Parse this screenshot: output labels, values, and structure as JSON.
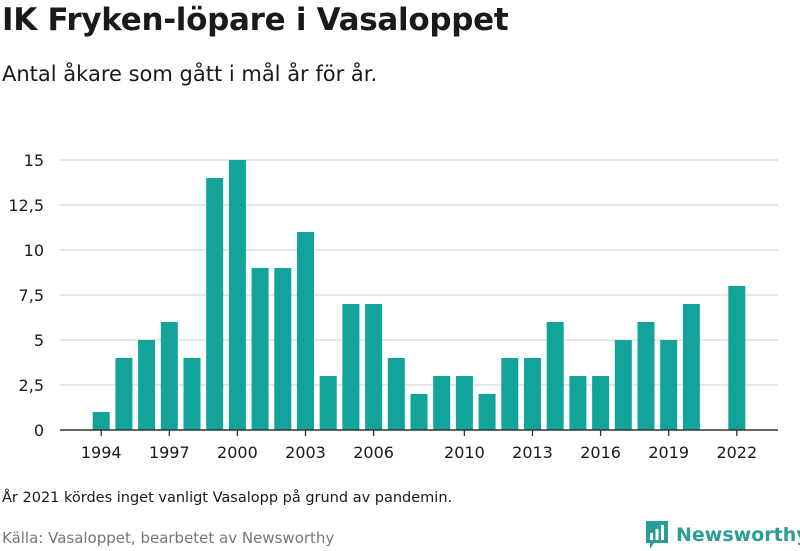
{
  "header": {
    "title": "IK Fryken-löpare i Vasaloppet",
    "subtitle": "Antal åkare som gått i mål år för år."
  },
  "footer": {
    "note": "År 2021 kördes inget vanligt Vasalopp på grund av pandemin.",
    "source": "Källa: Vasaloppet, bearbetet av Newsworthy",
    "brand": "Newsworthy"
  },
  "colors": {
    "bar": "#12a39b",
    "grid": "#d6d6d6",
    "axis": "#333333",
    "brand": "#2a9d94"
  },
  "chart_data": {
    "type": "bar",
    "title": "IK Fryken-löpare i Vasaloppet",
    "subtitle": "Antal åkare som gått i mål år för år.",
    "xlabel": "",
    "ylabel": "",
    "categories": [
      1993,
      1994,
      1995,
      1996,
      1997,
      1998,
      1999,
      2000,
      2001,
      2002,
      2003,
      2004,
      2005,
      2006,
      2007,
      2008,
      2009,
      2010,
      2011,
      2012,
      2013,
      2014,
      2015,
      2016,
      2017,
      2018,
      2019,
      2020,
      2021,
      2022
    ],
    "values": [
      null,
      1,
      4,
      5,
      6,
      4,
      14,
      15,
      9,
      9,
      11,
      3,
      7,
      7,
      4,
      2,
      3,
      3,
      2,
      4,
      4,
      6,
      3,
      3,
      5,
      6,
      5,
      7,
      null,
      8
    ],
    "x_tick_labels": [
      "1994",
      "1997",
      "2000",
      "2003",
      "2006",
      "2010",
      "2013",
      "2016",
      "2019",
      "2022"
    ],
    "y_ticks": [
      0,
      2.5,
      5,
      7.5,
      10,
      12.5,
      15
    ],
    "y_tick_labels": [
      "0",
      "2,5",
      "5",
      "7,5",
      "10",
      "12,5",
      "15"
    ],
    "ylim": [
      0,
      15
    ],
    "grid": true,
    "legend": "none"
  }
}
